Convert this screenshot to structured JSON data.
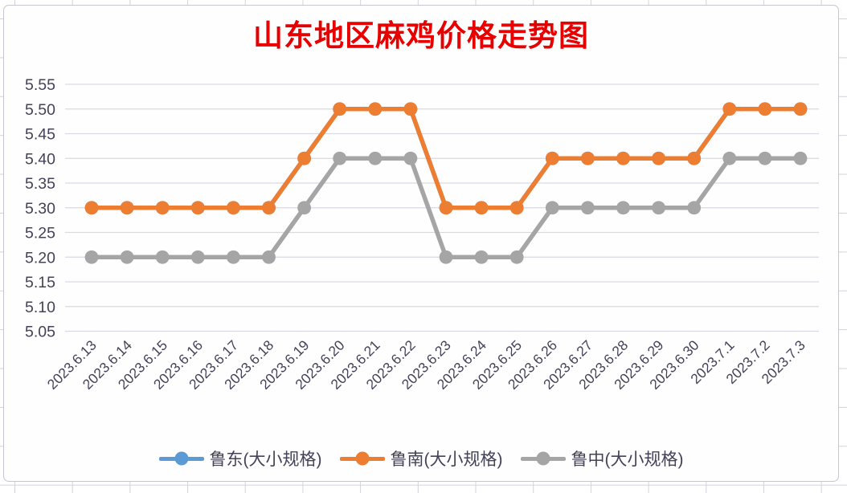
{
  "background": {
    "grid_line_color": "#d2d2dc"
  },
  "chart": {
    "title_color": "#e60000",
    "axis_label_color": "#444258",
    "grid_color": "#d9d9e3",
    "card_border_color": "#c7c7d3"
  },
  "chart_data": {
    "type": "line",
    "title": "山东地区麻鸡价格走势图",
    "categories": [
      "2023.6.13",
      "2023.6.14",
      "2023.6.15",
      "2023.6.16",
      "2023.6.17",
      "2023.6.18",
      "2023.6.19",
      "2023.6.20",
      "2023.6.21",
      "2023.6.22",
      "2023.6.23",
      "2023.6.24",
      "2023.6.25",
      "2023.6.26",
      "2023.6.27",
      "2023.6.28",
      "2023.6.29",
      "2023.6.30",
      "2023.7.1",
      "2023.7.2",
      "2023.7.3"
    ],
    "series": [
      {
        "name": "鲁东(大小规格)",
        "color": "#5B9BD5",
        "values": [
          5.3,
          5.3,
          5.3,
          5.3,
          5.3,
          5.3,
          5.4,
          5.5,
          5.5,
          5.5,
          5.3,
          5.3,
          5.3,
          5.4,
          5.4,
          5.4,
          5.4,
          5.4,
          5.5,
          5.5,
          5.5
        ]
      },
      {
        "name": "鲁南(大小规格)",
        "color": "#ED7D31",
        "values": [
          5.3,
          5.3,
          5.3,
          5.3,
          5.3,
          5.3,
          5.4,
          5.5,
          5.5,
          5.5,
          5.3,
          5.3,
          5.3,
          5.4,
          5.4,
          5.4,
          5.4,
          5.4,
          5.5,
          5.5,
          5.5
        ]
      },
      {
        "name": "鲁中(大小规格)",
        "color": "#A5A5A5",
        "values": [
          5.2,
          5.2,
          5.2,
          5.2,
          5.2,
          5.2,
          5.3,
          5.4,
          5.4,
          5.4,
          5.2,
          5.2,
          5.2,
          5.3,
          5.3,
          5.3,
          5.3,
          5.3,
          5.4,
          5.4,
          5.4
        ]
      }
    ],
    "y_ticks": [
      "5.55",
      "5.50",
      "5.45",
      "5.40",
      "5.35",
      "5.30",
      "5.25",
      "5.20",
      "5.15",
      "5.10",
      "5.05"
    ],
    "ylim": [
      5.05,
      5.55
    ],
    "grid": true,
    "legend_position": "bottom"
  }
}
